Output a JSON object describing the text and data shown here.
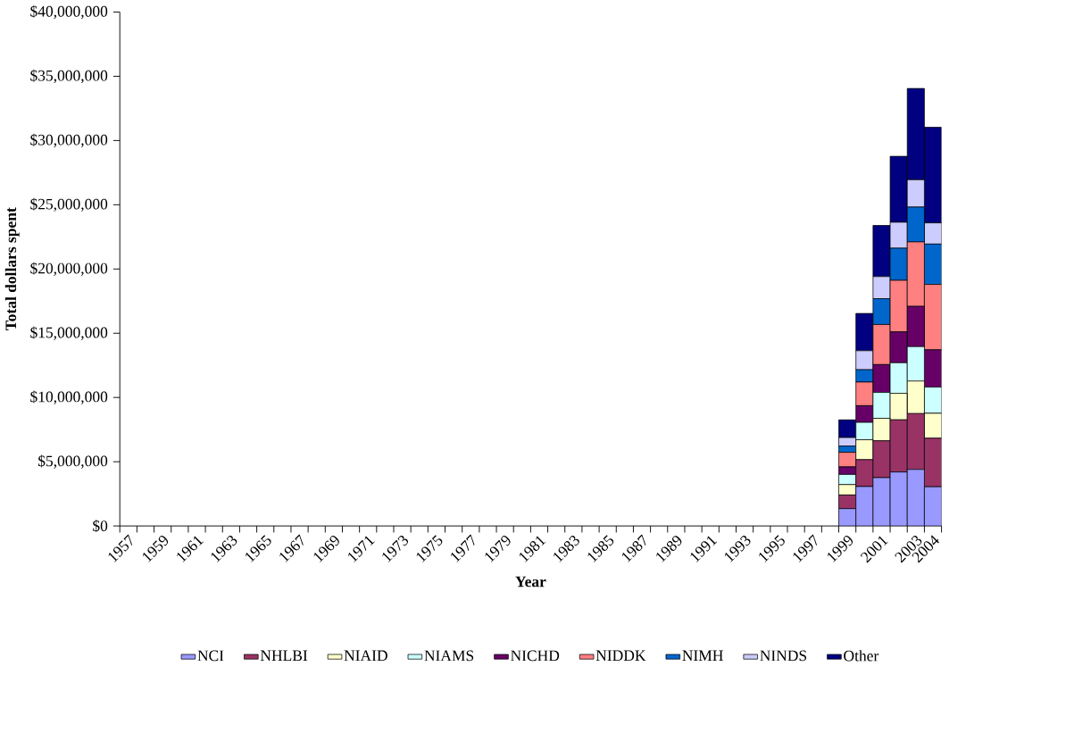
{
  "chart_data": {
    "type": "bar",
    "stacked": true,
    "xlabel": "Year",
    "ylabel": "Total dollars spent",
    "categories": [
      "1957",
      null,
      "1959",
      null,
      "1961",
      null,
      "1963",
      null,
      "1965",
      null,
      "1967",
      null,
      "1969",
      null,
      "1971",
      null,
      "1973",
      null,
      "1975",
      null,
      "1977",
      null,
      "1979",
      null,
      "1981",
      null,
      "1983",
      null,
      "1985",
      null,
      "1987",
      null,
      "1989",
      null,
      "1991",
      null,
      "1993",
      null,
      "1995",
      null,
      "1997",
      null,
      "1999",
      null,
      "2001",
      null,
      "2003",
      "2004"
    ],
    "series": [
      {
        "name": "NCI",
        "color": "#9999ff",
        "values": [
          null,
          null,
          null,
          null,
          null,
          null,
          null,
          null,
          null,
          null,
          null,
          null,
          null,
          null,
          null,
          null,
          null,
          null,
          null,
          null,
          null,
          null,
          null,
          null,
          null,
          null,
          null,
          null,
          null,
          null,
          null,
          null,
          null,
          null,
          null,
          null,
          null,
          null,
          null,
          null,
          null,
          null,
          1350000,
          3070000,
          3760000,
          4200000,
          4400000,
          3050000
        ]
      },
      {
        "name": "NHLBI",
        "color": "#993366",
        "values": [
          null,
          null,
          null,
          null,
          null,
          null,
          null,
          null,
          null,
          null,
          null,
          null,
          null,
          null,
          null,
          null,
          null,
          null,
          null,
          null,
          null,
          null,
          null,
          null,
          null,
          null,
          null,
          null,
          null,
          null,
          null,
          null,
          null,
          null,
          null,
          null,
          null,
          null,
          null,
          null,
          null,
          null,
          1060000,
          2090000,
          2870000,
          4060000,
          4350000,
          3780000
        ]
      },
      {
        "name": "NIAID",
        "color": "#ffffcc",
        "values": [
          null,
          null,
          null,
          null,
          null,
          null,
          null,
          null,
          null,
          null,
          null,
          null,
          null,
          null,
          null,
          null,
          null,
          null,
          null,
          null,
          null,
          null,
          null,
          null,
          null,
          null,
          null,
          null,
          null,
          null,
          null,
          null,
          null,
          null,
          null,
          null,
          null,
          null,
          null,
          null,
          null,
          null,
          810000,
          1550000,
          1750000,
          2060000,
          2530000,
          1940000
        ]
      },
      {
        "name": "NIAMS",
        "color": "#ccffff",
        "values": [
          null,
          null,
          null,
          null,
          null,
          null,
          null,
          null,
          null,
          null,
          null,
          null,
          null,
          null,
          null,
          null,
          null,
          null,
          null,
          null,
          null,
          null,
          null,
          null,
          null,
          null,
          null,
          null,
          null,
          null,
          null,
          null,
          null,
          null,
          null,
          null,
          null,
          null,
          null,
          null,
          null,
          null,
          790000,
          1350000,
          2010000,
          2380000,
          2680000,
          2040000
        ]
      },
      {
        "name": "NICHD",
        "color": "#660066",
        "values": [
          null,
          null,
          null,
          null,
          null,
          null,
          null,
          null,
          null,
          null,
          null,
          null,
          null,
          null,
          null,
          null,
          null,
          null,
          null,
          null,
          null,
          null,
          null,
          null,
          null,
          null,
          null,
          null,
          null,
          null,
          null,
          null,
          null,
          null,
          null,
          null,
          null,
          null,
          null,
          null,
          null,
          null,
          590000,
          1300000,
          2170000,
          2410000,
          3140000,
          2900000
        ]
      },
      {
        "name": "NIDDK",
        "color": "#ff8080",
        "values": [
          null,
          null,
          null,
          null,
          null,
          null,
          null,
          null,
          null,
          null,
          null,
          null,
          null,
          null,
          null,
          null,
          null,
          null,
          null,
          null,
          null,
          null,
          null,
          null,
          null,
          null,
          null,
          null,
          null,
          null,
          null,
          null,
          null,
          null,
          null,
          null,
          null,
          null,
          null,
          null,
          null,
          null,
          1130000,
          1840000,
          3120000,
          4010000,
          5010000,
          5090000
        ]
      },
      {
        "name": "NIMH",
        "color": "#0066cc",
        "values": [
          null,
          null,
          null,
          null,
          null,
          null,
          null,
          null,
          null,
          null,
          null,
          null,
          null,
          null,
          null,
          null,
          null,
          null,
          null,
          null,
          null,
          null,
          null,
          null,
          null,
          null,
          null,
          null,
          null,
          null,
          null,
          null,
          null,
          null,
          null,
          null,
          null,
          null,
          null,
          null,
          null,
          null,
          490000,
          960000,
          2010000,
          2500000,
          2710000,
          3140000
        ]
      },
      {
        "name": "NINDS",
        "color": "#ccccff",
        "values": [
          null,
          null,
          null,
          null,
          null,
          null,
          null,
          null,
          null,
          null,
          null,
          null,
          null,
          null,
          null,
          null,
          null,
          null,
          null,
          null,
          null,
          null,
          null,
          null,
          null,
          null,
          null,
          null,
          null,
          null,
          null,
          null,
          null,
          null,
          null,
          null,
          null,
          null,
          null,
          null,
          null,
          null,
          660000,
          1480000,
          1720000,
          2020000,
          2130000,
          1650000
        ]
      },
      {
        "name": "Other",
        "color": "#000080",
        "values": [
          null,
          null,
          null,
          null,
          null,
          null,
          null,
          null,
          null,
          null,
          null,
          null,
          null,
          null,
          null,
          null,
          null,
          null,
          null,
          null,
          null,
          null,
          null,
          null,
          null,
          null,
          null,
          null,
          null,
          null,
          null,
          null,
          null,
          null,
          null,
          null,
          null,
          null,
          null,
          null,
          null,
          null,
          1380000,
          2900000,
          3980000,
          5130000,
          7100000,
          7440000
        ]
      }
    ],
    "ylim": [
      0,
      40000000
    ],
    "yticks": [
      {
        "value": 0,
        "label": "$0"
      },
      {
        "value": 5000000,
        "label": "$5,000,000"
      },
      {
        "value": 10000000,
        "label": "$10,000,000"
      },
      {
        "value": 15000000,
        "label": "$15,000,000"
      },
      {
        "value": 20000000,
        "label": "$20,000,000"
      },
      {
        "value": 25000000,
        "label": "$25,000,000"
      },
      {
        "value": 30000000,
        "label": "$30,000,000"
      },
      {
        "value": 35000000,
        "label": "$35,000,000"
      },
      {
        "value": 40000000,
        "label": "$40,000,000"
      }
    ],
    "legend": "bottom",
    "grid": false
  }
}
